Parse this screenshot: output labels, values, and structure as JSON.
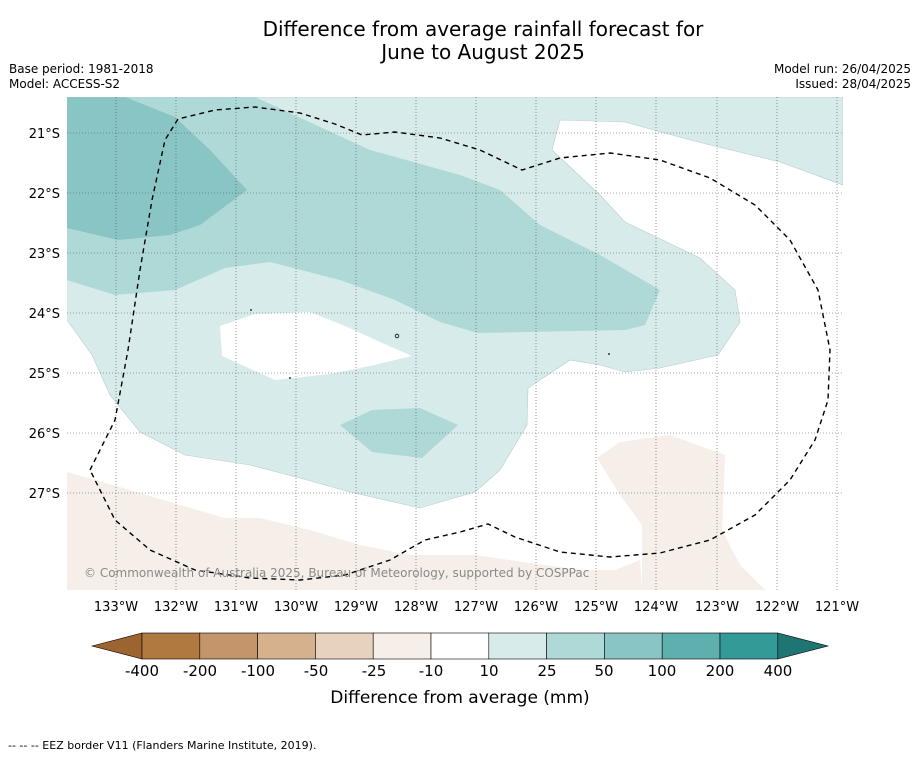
{
  "title": {
    "line1": "Difference from average rainfall forecast for",
    "line2": "June to August 2025"
  },
  "meta": {
    "base_period": "Base period: 1981-2018",
    "model": "Model: ACCESS-S2",
    "model_run": "Model run: 26/04/2025",
    "issued": "Issued: 28/04/2025"
  },
  "map": {
    "lat_labels": [
      "21°S",
      "22°S",
      "23°S",
      "24°S",
      "25°S",
      "26°S",
      "27°S"
    ],
    "lon_labels": [
      "133°W",
      "132°W",
      "131°W",
      "130°W",
      "129°W",
      "128°W",
      "127°W",
      "126°W",
      "125°W",
      "124°W",
      "123°W",
      "122°W",
      "121°W"
    ],
    "copyright": "© Commonwealth of Australia 2025, Bureau of Meteorology, supported by COSPPac",
    "category_colors": {
      "25_to_50": "#aed9d7",
      "50_to_100": "#89c5c4",
      "10_to_25": "#d7ebea",
      "-25_to_-10": "#f5eee9"
    }
  },
  "colorbar": {
    "ticks": [
      "-400",
      "-200",
      "-100",
      "-50",
      "-25",
      "-10",
      "10",
      "25",
      "50",
      "100",
      "200",
      "400"
    ],
    "colors": [
      "#9c6430",
      "#b07940",
      "#c4956a",
      "#d5b18e",
      "#e6d2bf",
      "#f5eee9",
      "#ffffff",
      "#d7ebea",
      "#aed9d7",
      "#89c5c4",
      "#5eb0ae",
      "#339a97",
      "#1e7572"
    ],
    "label": "Difference from average (mm)"
  },
  "footer": "--  --  -- EEZ border V11 (Flanders Marine Institute, 2019)."
}
